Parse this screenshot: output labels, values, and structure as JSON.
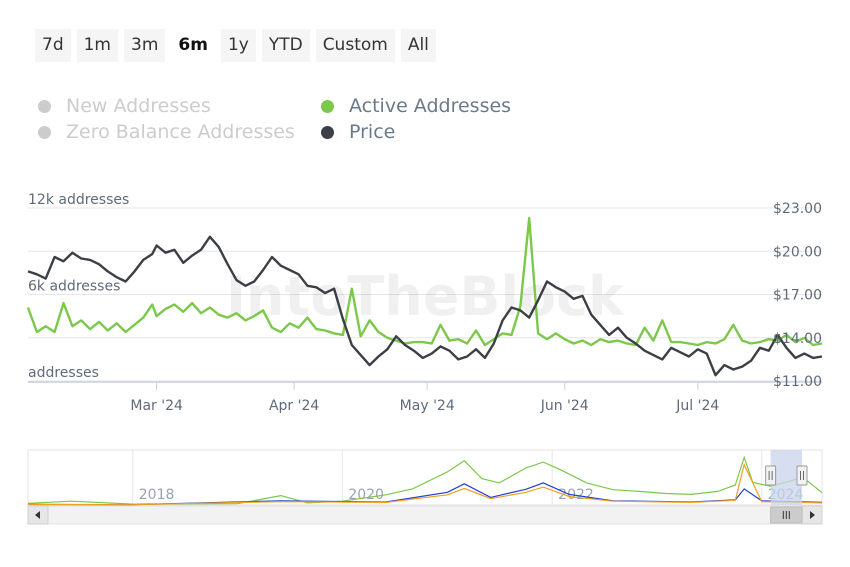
{
  "range_buttons": [
    {
      "label": "7d",
      "active": false
    },
    {
      "label": "1m",
      "active": false
    },
    {
      "label": "3m",
      "active": false
    },
    {
      "label": "6m",
      "active": true
    },
    {
      "label": "1y",
      "active": false
    },
    {
      "label": "YTD",
      "active": false
    },
    {
      "label": "Custom",
      "active": false
    },
    {
      "label": "All",
      "active": false
    }
  ],
  "legend": [
    {
      "label": "New Addresses",
      "color": "#cccccc",
      "enabled": false
    },
    {
      "label": "Active Addresses",
      "color": "#7cc84a",
      "enabled": true
    },
    {
      "label": "Zero Balance Addresses",
      "color": "#cccccc",
      "enabled": false
    },
    {
      "label": "Price",
      "color": "#3c3f46",
      "enabled": true
    }
  ],
  "watermark": "IntoTheBlock",
  "colors": {
    "active": "#7cc84a",
    "price": "#3c3f46",
    "grid": "#e6e6e6",
    "axis_text": "#5f6b7a",
    "navigator_mask": "#c8d4ec",
    "new_line": "#1f3fd1",
    "zero_line": "#f0a020"
  },
  "chart_data": {
    "type": "line",
    "x_labels": [
      "Mar '24",
      "Apr '24",
      "May '24",
      "Jun '24",
      "Jul '24"
    ],
    "x_domain": [
      "2024-02-01",
      "2024-07-29"
    ],
    "y_left_labels": [
      "12k addresses",
      "6k addresses",
      "addresses"
    ],
    "y_left_ticks": [
      12000,
      6000,
      0
    ],
    "y_right_labels": [
      "$23.00",
      "$20.00",
      "$17.00",
      "$14.00",
      "$11.00"
    ],
    "y_right_ticks": [
      23,
      20,
      17,
      14,
      11
    ],
    "ylim_left": [
      0,
      12000
    ],
    "ylim_right": [
      11,
      23
    ],
    "grid": true,
    "series": [
      {
        "name": "Active Addresses",
        "axis": "left",
        "points": [
          [
            "2024-02-01",
            5100
          ],
          [
            "2024-02-03",
            3400
          ],
          [
            "2024-02-05",
            3800
          ],
          [
            "2024-02-07",
            3400
          ],
          [
            "2024-02-09",
            5400
          ],
          [
            "2024-02-11",
            3800
          ],
          [
            "2024-02-13",
            4200
          ],
          [
            "2024-02-15",
            3600
          ],
          [
            "2024-02-17",
            4100
          ],
          [
            "2024-02-19",
            3500
          ],
          [
            "2024-02-21",
            4000
          ],
          [
            "2024-02-23",
            3400
          ],
          [
            "2024-02-25",
            3900
          ],
          [
            "2024-02-27",
            4400
          ],
          [
            "2024-02-29",
            5300
          ],
          [
            "2024-03-01",
            4500
          ],
          [
            "2024-03-03",
            5000
          ],
          [
            "2024-03-05",
            5300
          ],
          [
            "2024-03-07",
            4800
          ],
          [
            "2024-03-09",
            5400
          ],
          [
            "2024-03-11",
            4700
          ],
          [
            "2024-03-13",
            5100
          ],
          [
            "2024-03-15",
            4600
          ],
          [
            "2024-03-17",
            4400
          ],
          [
            "2024-03-19",
            4700
          ],
          [
            "2024-03-21",
            4200
          ],
          [
            "2024-03-23",
            4500
          ],
          [
            "2024-03-25",
            4900
          ],
          [
            "2024-03-27",
            3700
          ],
          [
            "2024-03-29",
            3400
          ],
          [
            "2024-03-31",
            4000
          ],
          [
            "2024-04-02",
            3700
          ],
          [
            "2024-04-04",
            4400
          ],
          [
            "2024-04-06",
            3600
          ],
          [
            "2024-04-08",
            3500
          ],
          [
            "2024-04-10",
            3300
          ],
          [
            "2024-04-12",
            3200
          ],
          [
            "2024-04-14",
            6400
          ],
          [
            "2024-04-16",
            3100
          ],
          [
            "2024-04-18",
            4200
          ],
          [
            "2024-04-20",
            3400
          ],
          [
            "2024-04-22",
            3000
          ],
          [
            "2024-04-24",
            2800
          ],
          [
            "2024-04-26",
            2600
          ],
          [
            "2024-04-28",
            2700
          ],
          [
            "2024-04-30",
            2700
          ],
          [
            "2024-05-02",
            2600
          ],
          [
            "2024-05-04",
            3900
          ],
          [
            "2024-05-06",
            2800
          ],
          [
            "2024-05-08",
            2900
          ],
          [
            "2024-05-10",
            2600
          ],
          [
            "2024-05-12",
            3500
          ],
          [
            "2024-05-14",
            2500
          ],
          [
            "2024-05-16",
            2900
          ],
          [
            "2024-05-18",
            3300
          ],
          [
            "2024-05-20",
            3200
          ],
          [
            "2024-05-22",
            5200
          ],
          [
            "2024-05-24",
            11300
          ],
          [
            "2024-05-26",
            3300
          ],
          [
            "2024-05-28",
            2900
          ],
          [
            "2024-05-30",
            3300
          ],
          [
            "2024-06-01",
            2900
          ],
          [
            "2024-06-03",
            2600
          ],
          [
            "2024-06-05",
            2800
          ],
          [
            "2024-06-07",
            2500
          ],
          [
            "2024-06-09",
            2900
          ],
          [
            "2024-06-11",
            2700
          ],
          [
            "2024-06-13",
            2800
          ],
          [
            "2024-06-15",
            2600
          ],
          [
            "2024-06-17",
            2500
          ],
          [
            "2024-06-19",
            3700
          ],
          [
            "2024-06-21",
            2800
          ],
          [
            "2024-06-23",
            4200
          ],
          [
            "2024-06-25",
            2700
          ],
          [
            "2024-06-27",
            2700
          ],
          [
            "2024-06-29",
            2600
          ],
          [
            "2024-07-01",
            2500
          ],
          [
            "2024-07-03",
            2700
          ],
          [
            "2024-07-05",
            2600
          ],
          [
            "2024-07-07",
            2900
          ],
          [
            "2024-07-09",
            3900
          ],
          [
            "2024-07-11",
            2800
          ],
          [
            "2024-07-13",
            2600
          ],
          [
            "2024-07-15",
            2700
          ],
          [
            "2024-07-17",
            2900
          ],
          [
            "2024-07-19",
            2800
          ],
          [
            "2024-07-21",
            3200
          ],
          [
            "2024-07-23",
            2700
          ],
          [
            "2024-07-25",
            3000
          ],
          [
            "2024-07-27",
            2500
          ],
          [
            "2024-07-29",
            2600
          ]
        ]
      },
      {
        "name": "Price",
        "axis": "right",
        "points": [
          [
            "2024-02-01",
            18.6
          ],
          [
            "2024-02-03",
            18.4
          ],
          [
            "2024-02-05",
            18.1
          ],
          [
            "2024-02-07",
            19.6
          ],
          [
            "2024-02-09",
            19.3
          ],
          [
            "2024-02-11",
            19.9
          ],
          [
            "2024-02-13",
            19.5
          ],
          [
            "2024-02-15",
            19.4
          ],
          [
            "2024-02-17",
            19.1
          ],
          [
            "2024-02-19",
            18.6
          ],
          [
            "2024-02-21",
            18.2
          ],
          [
            "2024-02-23",
            17.9
          ],
          [
            "2024-02-25",
            18.6
          ],
          [
            "2024-02-27",
            19.4
          ],
          [
            "2024-02-29",
            19.8
          ],
          [
            "2024-03-01",
            20.4
          ],
          [
            "2024-03-03",
            19.9
          ],
          [
            "2024-03-05",
            20.1
          ],
          [
            "2024-03-07",
            19.2
          ],
          [
            "2024-03-09",
            19.7
          ],
          [
            "2024-03-11",
            20.1
          ],
          [
            "2024-03-13",
            21.0
          ],
          [
            "2024-03-15",
            20.3
          ],
          [
            "2024-03-17",
            19.1
          ],
          [
            "2024-03-19",
            18.0
          ],
          [
            "2024-03-21",
            17.6
          ],
          [
            "2024-03-23",
            17.9
          ],
          [
            "2024-03-25",
            18.7
          ],
          [
            "2024-03-27",
            19.6
          ],
          [
            "2024-03-29",
            19.0
          ],
          [
            "2024-03-31",
            18.7
          ],
          [
            "2024-04-02",
            18.4
          ],
          [
            "2024-04-04",
            17.6
          ],
          [
            "2024-04-06",
            17.5
          ],
          [
            "2024-04-08",
            17.1
          ],
          [
            "2024-04-10",
            17.4
          ],
          [
            "2024-04-12",
            15.3
          ],
          [
            "2024-04-14",
            13.5
          ],
          [
            "2024-04-16",
            12.8
          ],
          [
            "2024-04-18",
            12.1
          ],
          [
            "2024-04-20",
            12.7
          ],
          [
            "2024-04-22",
            13.2
          ],
          [
            "2024-04-24",
            14.1
          ],
          [
            "2024-04-26",
            13.5
          ],
          [
            "2024-04-28",
            13.1
          ],
          [
            "2024-04-30",
            12.6
          ],
          [
            "2024-05-02",
            12.9
          ],
          [
            "2024-05-04",
            13.4
          ],
          [
            "2024-05-06",
            13.1
          ],
          [
            "2024-05-08",
            12.5
          ],
          [
            "2024-05-10",
            12.7
          ],
          [
            "2024-05-12",
            13.2
          ],
          [
            "2024-05-14",
            12.6
          ],
          [
            "2024-05-16",
            13.6
          ],
          [
            "2024-05-18",
            15.2
          ],
          [
            "2024-05-20",
            16.1
          ],
          [
            "2024-05-22",
            15.9
          ],
          [
            "2024-05-24",
            15.4
          ],
          [
            "2024-05-26",
            16.6
          ],
          [
            "2024-05-28",
            17.9
          ],
          [
            "2024-05-30",
            17.5
          ],
          [
            "2024-06-01",
            17.2
          ],
          [
            "2024-06-03",
            16.7
          ],
          [
            "2024-06-05",
            16.9
          ],
          [
            "2024-06-07",
            15.6
          ],
          [
            "2024-06-09",
            14.9
          ],
          [
            "2024-06-11",
            14.2
          ],
          [
            "2024-06-13",
            14.7
          ],
          [
            "2024-06-15",
            14.0
          ],
          [
            "2024-06-17",
            13.6
          ],
          [
            "2024-06-19",
            13.1
          ],
          [
            "2024-06-21",
            12.8
          ],
          [
            "2024-06-23",
            12.5
          ],
          [
            "2024-06-25",
            13.3
          ],
          [
            "2024-06-27",
            13.0
          ],
          [
            "2024-06-29",
            12.7
          ],
          [
            "2024-07-01",
            13.2
          ],
          [
            "2024-07-03",
            12.9
          ],
          [
            "2024-07-05",
            11.4
          ],
          [
            "2024-07-07",
            12.1
          ],
          [
            "2024-07-09",
            11.8
          ],
          [
            "2024-07-11",
            12.0
          ],
          [
            "2024-07-13",
            12.4
          ],
          [
            "2024-07-15",
            13.3
          ],
          [
            "2024-07-17",
            13.1
          ],
          [
            "2024-07-19",
            14.2
          ],
          [
            "2024-07-21",
            13.3
          ],
          [
            "2024-07-23",
            12.6
          ],
          [
            "2024-07-25",
            12.9
          ],
          [
            "2024-07-27",
            12.6
          ],
          [
            "2024-07-29",
            12.7
          ]
        ]
      }
    ],
    "navigator": {
      "x_labels": [
        "2018",
        "2020",
        "2022",
        "2024"
      ],
      "x_domain": [
        "2017-01-01",
        "2024-07-29"
      ],
      "selected_range": [
        "2024-02-01",
        "2024-07-29"
      ],
      "series": [
        {
          "name": "Active Addresses",
          "points": [
            [
              "2017-01-01",
              400
            ],
            [
              "2017-06-01",
              900
            ],
            [
              "2018-01-01",
              200
            ],
            [
              "2018-06-01",
              250
            ],
            [
              "2019-01-01",
              300
            ],
            [
              "2019-06-01",
              2200
            ],
            [
              "2019-09-01",
              500
            ],
            [
              "2020-01-01",
              900
            ],
            [
              "2020-06-01",
              2400
            ],
            [
              "2020-09-01",
              3800
            ],
            [
              "2021-01-01",
              7800
            ],
            [
              "2021-03-01",
              10400
            ],
            [
              "2021-05-01",
              6200
            ],
            [
              "2021-07-01",
              5200
            ],
            [
              "2021-10-01",
              8700
            ],
            [
              "2021-12-01",
              10100
            ],
            [
              "2022-02-01",
              8200
            ],
            [
              "2022-05-01",
              5200
            ],
            [
              "2022-08-01",
              3600
            ],
            [
              "2022-11-01",
              3200
            ],
            [
              "2023-02-01",
              2700
            ],
            [
              "2023-05-01",
              2500
            ],
            [
              "2023-08-01",
              3200
            ],
            [
              "2023-10-01",
              4700
            ],
            [
              "2023-11-01",
              11200
            ],
            [
              "2023-12-01",
              5300
            ],
            [
              "2024-02-01",
              4400
            ],
            [
              "2024-05-24",
              6500
            ],
            [
              "2024-07-29",
              2900
            ]
          ]
        },
        {
          "name": "New Addresses",
          "points": [
            [
              "2017-01-01",
              150
            ],
            [
              "2018-01-01",
              80
            ],
            [
              "2019-06-01",
              1000
            ],
            [
              "2020-06-01",
              700
            ],
            [
              "2021-01-01",
              3000
            ],
            [
              "2021-03-01",
              5000
            ],
            [
              "2021-06-01",
              1800
            ],
            [
              "2021-10-01",
              3700
            ],
            [
              "2021-12-01",
              5200
            ],
            [
              "2022-03-01",
              2500
            ],
            [
              "2022-08-01",
              1000
            ],
            [
              "2023-05-01",
              700
            ],
            [
              "2023-10-01",
              1200
            ],
            [
              "2023-11-01",
              3800
            ],
            [
              "2024-01-01",
              1000
            ],
            [
              "2024-07-29",
              600
            ]
          ]
        },
        {
          "name": "Zero Balance Addresses",
          "points": [
            [
              "2017-01-01",
              120
            ],
            [
              "2018-01-01",
              60
            ],
            [
              "2019-06-01",
              800
            ],
            [
              "2020-06-01",
              600
            ],
            [
              "2021-01-01",
              2400
            ],
            [
              "2021-03-01",
              3900
            ],
            [
              "2021-06-01",
              1500
            ],
            [
              "2021-10-01",
              3000
            ],
            [
              "2021-12-01",
              4200
            ],
            [
              "2022-03-01",
              2000
            ],
            [
              "2022-08-01",
              900
            ],
            [
              "2023-05-01",
              600
            ],
            [
              "2023-10-01",
              1100
            ],
            [
              "2023-11-01",
              9500
            ],
            [
              "2024-01-01",
              800
            ],
            [
              "2024-07-29",
              500
            ]
          ]
        }
      ]
    }
  }
}
